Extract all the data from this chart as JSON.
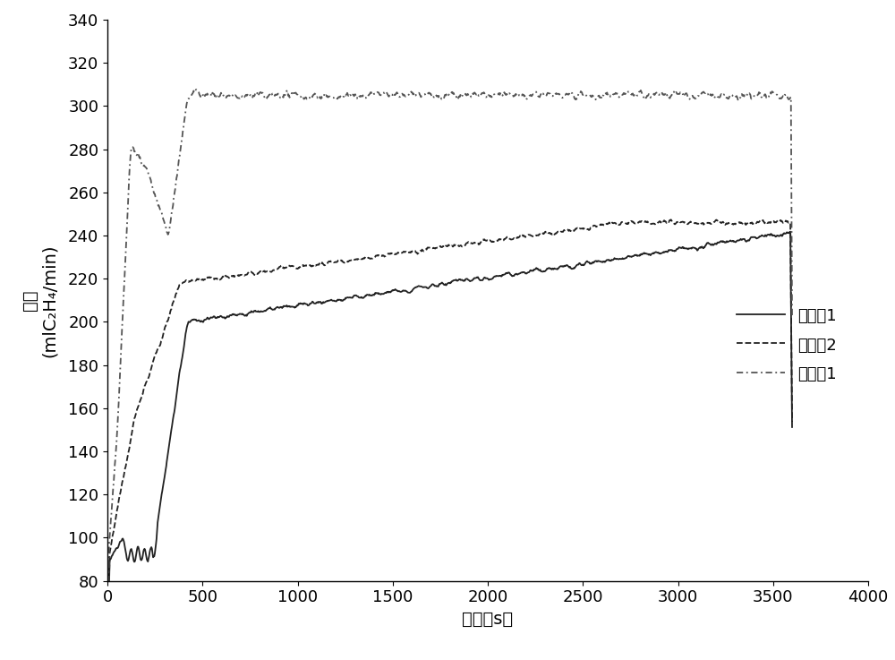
{
  "title": "",
  "xlabel": "时间（s）",
  "ylabel_line1": "活性",
  "ylabel_line2": "(mlC₂H₄/min)",
  "xlim": [
    0,
    4000
  ],
  "ylim": [
    80,
    340
  ],
  "xticks": [
    0,
    500,
    1000,
    1500,
    2000,
    2500,
    3000,
    3500,
    4000
  ],
  "yticks": [
    80,
    100,
    120,
    140,
    160,
    180,
    200,
    220,
    240,
    260,
    280,
    300,
    320,
    340
  ],
  "legend_labels": [
    "对比例1",
    "对比例2",
    "实施例1"
  ],
  "line1_color": "#222222",
  "line2_color": "#222222",
  "line3_color": "#555555",
  "line_width": 1.3,
  "font_size": 13,
  "legend_fontsize": 13,
  "background_color": "#ffffff"
}
